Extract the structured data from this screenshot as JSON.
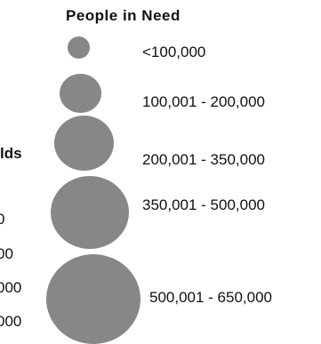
{
  "legend": {
    "title": "People in Need",
    "symbol_color": "#878787",
    "classes": [
      {
        "label": "<100,000"
      },
      {
        "label": "100,001 - 200,000"
      },
      {
        "label": "200,001 - 350,000"
      },
      {
        "label": "350,001 - 500,000"
      },
      {
        "label": "500,001 - 650,000"
      }
    ]
  },
  "clipped_left_legend": {
    "heading_fragment": "lds",
    "row_fragments": [
      "0",
      "00",
      "000",
      "000"
    ]
  }
}
